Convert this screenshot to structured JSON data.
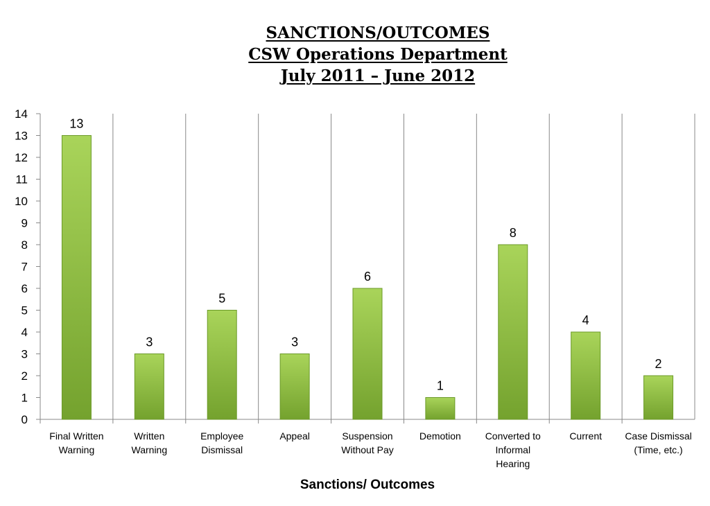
{
  "chart_data": {
    "type": "bar",
    "title": [
      "SANCTIONS/OUTCOMES",
      "CSW Operations Department",
      "July 2011 – June 2012"
    ],
    "xlabel": "Sanctions/ Outcomes",
    "ylabel": "",
    "categories": [
      [
        "Final Written",
        "Warning"
      ],
      [
        "Written",
        "Warning"
      ],
      [
        "Employee",
        "Dismissal"
      ],
      [
        "Appeal"
      ],
      [
        "Suspension",
        "Without Pay"
      ],
      [
        "Demotion"
      ],
      [
        "Converted to",
        "Informal",
        "Hearing"
      ],
      [
        "Current"
      ],
      [
        "Case Dismissal",
        "(Time, etc.)"
      ]
    ],
    "values": [
      13,
      3,
      5,
      3,
      6,
      1,
      8,
      4,
      2
    ],
    "ylim": [
      0,
      14
    ],
    "yticks": [
      0,
      1,
      2,
      3,
      4,
      5,
      6,
      7,
      8,
      9,
      10,
      11,
      12,
      13,
      14
    ],
    "data_labels": true,
    "grid": "vertical separators between categories",
    "legend": "none",
    "colors": {
      "bar_light": "#a9d45a",
      "bar_dark": "#74a22e",
      "bar_border": "#6b9a28",
      "axis": "#888888"
    }
  }
}
